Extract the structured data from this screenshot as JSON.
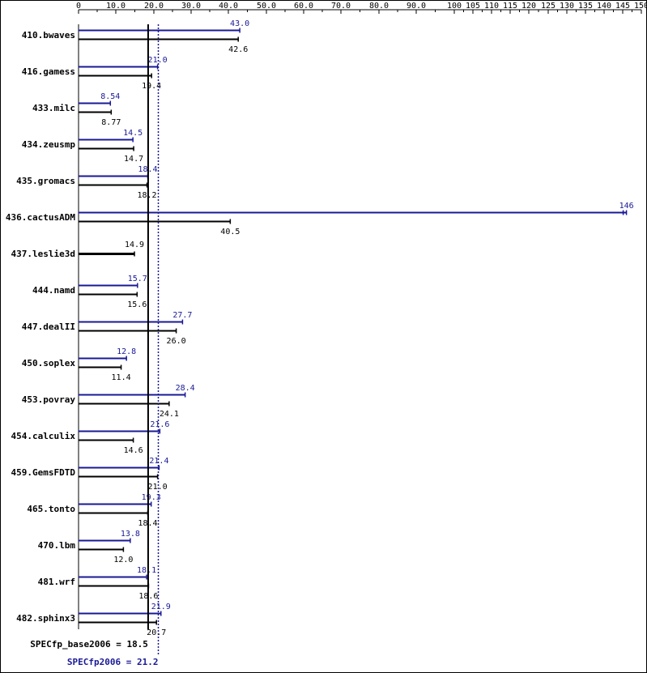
{
  "chart_data": {
    "type": "bar",
    "orientation": "horizontal",
    "grid": false,
    "xlim": [
      0,
      150
    ],
    "x_ticks": [
      "0",
      "10.0",
      "20.0",
      "30.0",
      "40.0",
      "50.0",
      "60.0",
      "70.0",
      "80.0",
      "90.0",
      "100",
      "105",
      "110",
      "115",
      "120",
      "125",
      "130",
      "135",
      "140",
      "145",
      "150"
    ],
    "x_tick_values": [
      0,
      10,
      20,
      30,
      40,
      50,
      60,
      70,
      80,
      90,
      100,
      105,
      110,
      115,
      120,
      125,
      130,
      135,
      140,
      145,
      150
    ],
    "categories": [
      "410.bwaves",
      "416.gamess",
      "433.milc",
      "434.zeusmp",
      "435.gromacs",
      "436.cactusADM",
      "437.leslie3d",
      "444.namd",
      "447.dealII",
      "450.soplex",
      "453.povray",
      "454.calculix",
      "459.GemsFDTD",
      "465.tonto",
      "470.lbm",
      "481.wrf",
      "482.sphinx3"
    ],
    "series": [
      {
        "color": "#191996",
        "values": [
          43.0,
          21.0,
          8.54,
          14.5,
          18.4,
          146,
          null,
          15.7,
          27.7,
          12.8,
          28.4,
          21.6,
          21.4,
          19.3,
          13.8,
          18.1,
          21.9
        ],
        "labels": [
          "43.0",
          "21.0",
          "8.54",
          "14.5",
          "18.4",
          "146",
          "",
          "15.7",
          "27.7",
          "12.8",
          "28.4",
          "21.6",
          "21.4",
          "19.3",
          "13.8",
          "18.1",
          "21.9"
        ]
      },
      {
        "color": "#000000",
        "values": [
          42.6,
          19.4,
          8.77,
          14.7,
          18.2,
          40.5,
          14.9,
          15.6,
          26.0,
          11.4,
          24.1,
          14.6,
          21.0,
          18.4,
          12.0,
          18.6,
          20.7
        ],
        "labels": [
          "42.6",
          "19.4",
          "8.77",
          "14.7",
          "18.2",
          "40.5",
          "14.9",
          "15.6",
          "26.0",
          "11.4",
          "24.1",
          "14.6",
          "21.0",
          "18.4",
          "12.0",
          "18.6",
          "20.7"
        ]
      }
    ],
    "reference_lines": [
      {
        "label": "SPECfp_base2006 = 18.5",
        "value": 18.5,
        "color": "#000000",
        "style": "solid"
      },
      {
        "label": "SPECfp2006 = 21.2",
        "value": 21.2,
        "color": "#191996",
        "style": "dotted"
      }
    ]
  }
}
